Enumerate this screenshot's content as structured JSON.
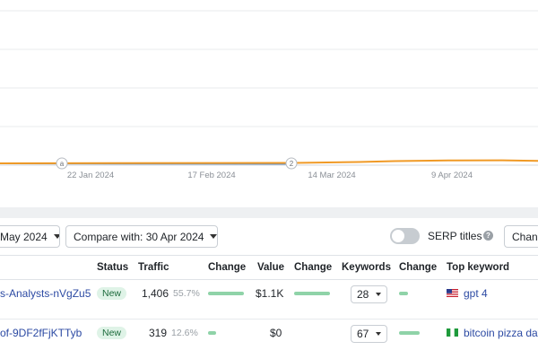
{
  "chart": {
    "x_ticks": [
      "22 Jan 2024",
      "17 Feb 2024",
      "14 Mar 2024",
      "9 Apr 2024"
    ],
    "markers": [
      "a",
      "2"
    ],
    "series_colors": [
      "#f09a26",
      "#5b8ec9"
    ],
    "grid_color": "#e8ebee"
  },
  "controls": {
    "date_label": "May 2024",
    "compare_label": "Compare with: 30 Apr 2024",
    "serp_label": "SERP titles",
    "serp_on": false,
    "help_glyph": "?",
    "change_label": "Change"
  },
  "table": {
    "headers": [
      "Status",
      "Traffic",
      "Change",
      "Value",
      "Change",
      "Keywords",
      "Change",
      "Top keyword"
    ],
    "rows": [
      {
        "url": "s-Analysts-nVgZu5",
        "status": "New",
        "traffic": "1,406",
        "traffic_pct": "55.7%",
        "value": "$1.1K",
        "keywords": "28",
        "flag": "us-flag-icon",
        "top_keyword": "gpt 4"
      },
      {
        "url": "of-9DF2fFjKTTyb",
        "status": "New",
        "traffic": "319",
        "traffic_pct": "12.6%",
        "value": "$0",
        "keywords": "67",
        "flag": "ng-flag-icon",
        "top_keyword": "bitcoin pizza day"
      }
    ]
  }
}
